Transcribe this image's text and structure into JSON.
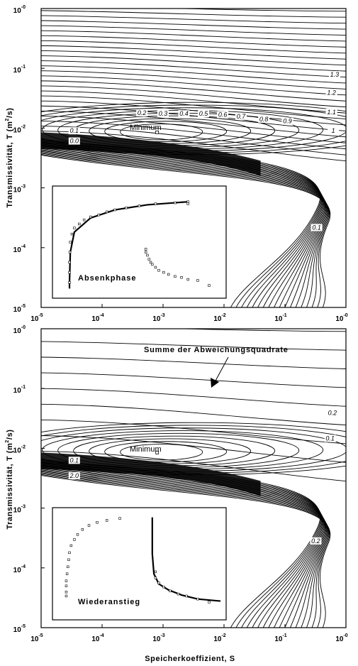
{
  "chart_data": [
    {
      "type": "contour",
      "panel": "top",
      "xlabel": "",
      "ylabel": "Transmissivität, T (m²/s)",
      "ylabel_parts": [
        "Transmissivität, T (m",
        "2",
        "/s)"
      ],
      "x_scale": "log",
      "y_scale": "log",
      "xlim": [
        1e-05,
        1
      ],
      "ylim": [
        1e-05,
        1
      ],
      "x_ticks": [
        {
          "base": "10",
          "exp": "-5"
        },
        {
          "base": "10",
          "exp": "-4"
        },
        {
          "base": "10",
          "exp": "-3"
        },
        {
          "base": "10",
          "exp": "-2"
        },
        {
          "base": "10",
          "exp": "-1"
        },
        {
          "base": "10",
          "exp": "-0"
        }
      ],
      "y_ticks": [
        {
          "base": "10",
          "exp": "-5"
        },
        {
          "base": "10",
          "exp": "-4"
        },
        {
          "base": "10",
          "exp": "-3"
        },
        {
          "base": "10",
          "exp": "-2"
        },
        {
          "base": "10",
          "exp": "-1"
        },
        {
          "base": "10",
          "exp": "-0"
        }
      ],
      "minimum": {
        "label": "Minimum",
        "S": 0.0008,
        "T": 0.0085
      },
      "contour_labels": [
        {
          "text": "1.3",
          "S": 0.65,
          "T": 0.072
        },
        {
          "text": "1.2",
          "S": 0.58,
          "T": 0.036
        },
        {
          "text": "1.1",
          "S": 0.58,
          "T": 0.017
        },
        {
          "text": "1",
          "S": 0.62,
          "T": 0.0083
        },
        {
          "text": "0.9",
          "S": 0.11,
          "T": 0.012
        },
        {
          "text": "0.8",
          "S": 0.045,
          "T": 0.013
        },
        {
          "text": "0.7",
          "S": 0.019,
          "T": 0.0145
        },
        {
          "text": "0.6",
          "S": 0.0095,
          "T": 0.0155
        },
        {
          "text": "0.5",
          "S": 0.0046,
          "T": 0.016
        },
        {
          "text": "0.4",
          "S": 0.0022,
          "T": 0.016
        },
        {
          "text": "0.3",
          "S": 0.001,
          "T": 0.016
        },
        {
          "text": "0.2",
          "S": 0.00045,
          "T": 0.0165
        },
        {
          "text": "0.1",
          "S": 3.5e-05,
          "T": 0.0083
        },
        {
          "text": "0.0",
          "S": 3.5e-05,
          "T": 0.0056
        },
        {
          "text": "0.1",
          "S": 0.33,
          "T": 0.0002
        }
      ],
      "inset": {
        "title": "Absenkphase",
        "model_curve": [
          [
            0.07,
            0.04
          ],
          [
            0.07,
            0.1
          ],
          [
            0.075,
            0.4
          ],
          [
            0.1,
            0.6
          ],
          [
            0.2,
            0.74
          ],
          [
            0.35,
            0.82
          ],
          [
            0.55,
            0.87
          ],
          [
            0.8,
            0.9
          ]
        ],
        "observations": [
          [
            0.07,
            0.1
          ],
          [
            0.07,
            0.2
          ],
          [
            0.07,
            0.3
          ],
          [
            0.072,
            0.4
          ],
          [
            0.075,
            0.5
          ],
          [
            0.085,
            0.58
          ],
          [
            0.1,
            0.64
          ],
          [
            0.13,
            0.68
          ],
          [
            0.16,
            0.72
          ],
          [
            0.2,
            0.75
          ],
          [
            0.25,
            0.77
          ],
          [
            0.3,
            0.8
          ],
          [
            0.35,
            0.82
          ],
          [
            0.42,
            0.84
          ],
          [
            0.5,
            0.86
          ],
          [
            0.6,
            0.88
          ],
          [
            0.72,
            0.89
          ],
          [
            0.8,
            0.88
          ],
          [
            0.8,
            0.9
          ],
          [
            0.54,
            0.43
          ],
          [
            0.54,
            0.4
          ],
          [
            0.55,
            0.37
          ],
          [
            0.56,
            0.33
          ],
          [
            0.57,
            0.3
          ],
          [
            0.58,
            0.28
          ],
          [
            0.6,
            0.25
          ],
          [
            0.62,
            0.22
          ],
          [
            0.65,
            0.2
          ],
          [
            0.68,
            0.18
          ],
          [
            0.72,
            0.16
          ],
          [
            0.76,
            0.15
          ],
          [
            0.8,
            0.13
          ],
          [
            0.86,
            0.12
          ],
          [
            0.93,
            0.07
          ]
        ]
      }
    },
    {
      "type": "contour",
      "panel": "bottom",
      "xlabel": "Speicherkoeffizient, S",
      "ylabel": "Transmissivität, T (m²/s)",
      "ylabel_parts": [
        "Transmissivität, T (m",
        "2",
        "/s)"
      ],
      "x_scale": "log",
      "y_scale": "log",
      "xlim": [
        1e-05,
        1
      ],
      "ylim": [
        1e-05,
        1
      ],
      "x_ticks": [
        {
          "base": "10",
          "exp": "-5"
        },
        {
          "base": "10",
          "exp": "-4"
        },
        {
          "base": "10",
          "exp": "-3"
        },
        {
          "base": "10",
          "exp": "-2"
        },
        {
          "base": "10",
          "exp": "-1"
        },
        {
          "base": "10",
          "exp": "-0"
        }
      ],
      "y_ticks": [
        {
          "base": "10",
          "exp": "-5"
        },
        {
          "base": "10",
          "exp": "-4"
        },
        {
          "base": "10",
          "exp": "-3"
        },
        {
          "base": "10",
          "exp": "-2"
        },
        {
          "base": "10",
          "exp": "-1"
        },
        {
          "base": "10",
          "exp": "-0"
        }
      ],
      "minimum": {
        "label": "Minimum",
        "S": 0.0008,
        "T": 0.0085
      },
      "annotation": {
        "text": "Summe der Abweichungsquadrate",
        "arrow_to": {
          "S": 0.004,
          "T": 0.13
        }
      },
      "contour_labels": [
        {
          "text": "0.2",
          "S": 0.6,
          "T": 0.036
        },
        {
          "text": "0.1",
          "S": 0.55,
          "T": 0.0135
        },
        {
          "text": "0.1",
          "S": 3.5e-05,
          "T": 0.0058
        },
        {
          "text": "2.0",
          "S": 3.5e-05,
          "T": 0.0032
        },
        {
          "text": "0.2",
          "S": 0.32,
          "T": 0.00026
        }
      ],
      "inset": {
        "title": "Wiederanstieg",
        "model_curve": [
          [
            0.58,
            0.96
          ],
          [
            0.58,
            0.6
          ],
          [
            0.59,
            0.4
          ],
          [
            0.62,
            0.3
          ],
          [
            0.68,
            0.24
          ],
          [
            0.76,
            0.19
          ],
          [
            0.86,
            0.15
          ],
          [
            1.0,
            0.13
          ]
        ],
        "observations": [
          [
            0.05,
            0.18
          ],
          [
            0.05,
            0.22
          ],
          [
            0.05,
            0.28
          ],
          [
            0.05,
            0.33
          ],
          [
            0.055,
            0.4
          ],
          [
            0.06,
            0.47
          ],
          [
            0.065,
            0.54
          ],
          [
            0.07,
            0.61
          ],
          [
            0.08,
            0.68
          ],
          [
            0.1,
            0.74
          ],
          [
            0.12,
            0.79
          ],
          [
            0.15,
            0.84
          ],
          [
            0.19,
            0.88
          ],
          [
            0.24,
            0.91
          ],
          [
            0.3,
            0.93
          ],
          [
            0.38,
            0.95
          ],
          [
            0.6,
            0.42
          ],
          [
            0.6,
            0.36
          ],
          [
            0.62,
            0.31
          ],
          [
            0.65,
            0.27
          ],
          [
            0.69,
            0.23
          ],
          [
            0.74,
            0.2
          ],
          [
            0.79,
            0.18
          ],
          [
            0.86,
            0.15
          ],
          [
            0.93,
            0.12
          ]
        ]
      }
    }
  ]
}
